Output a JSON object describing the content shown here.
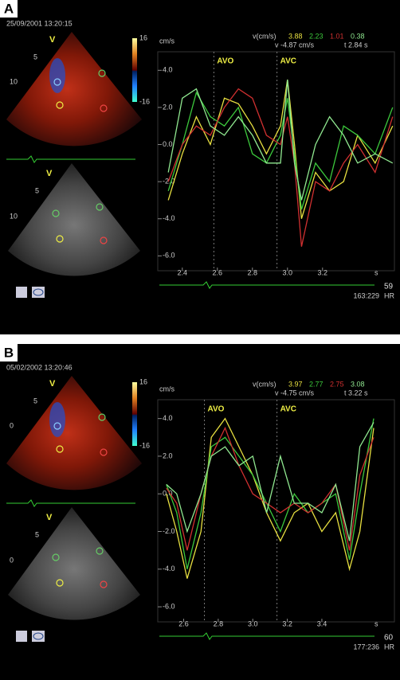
{
  "panels": [
    {
      "label": "A",
      "date": "25/09/2001 13:20:15",
      "colorbar": {
        "max": "16",
        "min": "-16"
      },
      "sector_labels": {
        "view": "V",
        "top": [
          "5",
          "10"
        ],
        "bottom": [
          "5",
          "10"
        ]
      },
      "readout": {
        "title": "v(cm/s)",
        "values": [
          "3.88",
          "2.23",
          "1.01",
          "0.38"
        ],
        "cursor_v": "v -4.87 cm/s",
        "cursor_t": "t 2.84 s"
      },
      "hr": "59",
      "hr_label": "HR",
      "frame": "163:229",
      "chart": {
        "type": "line",
        "unit": "cm/s",
        "x_unit": "s",
        "markers": [
          {
            "label": "AVO",
            "x": 2.58
          },
          {
            "label": "AVC",
            "x": 2.94
          }
        ],
        "x": [
          2.32,
          2.4,
          2.48,
          2.56,
          2.64,
          2.72,
          2.8,
          2.88,
          2.96,
          3.0,
          3.04,
          3.08,
          3.16,
          3.24,
          3.32,
          3.4,
          3.5,
          3.6
        ],
        "xlim": [
          2.26,
          3.61
        ],
        "xticks": [
          2.4,
          2.6,
          2.8,
          {
            "value": 3,
            "label": "3.0"
          },
          3.2
        ],
        "ylim": [
          -6.8,
          5
        ],
        "yticks": [
          {
            "value": 4,
            "label": "4.0"
          },
          {
            "value": 2,
            "label": "2.0"
          },
          {
            "value": 0,
            "label": "0.0"
          },
          {
            "value": -2,
            "label": "-2.0"
          },
          {
            "value": -4,
            "label": "-4.0"
          },
          {
            "value": -6,
            "label": "-6.0"
          }
        ],
        "series": [
          {
            "color": "#e8e040",
            "values": [
              -3,
              -0.5,
              1.5,
              0,
              2.5,
              2.2,
              1,
              -0.5,
              1,
              3.5,
              0,
              -4,
              -1.5,
              -2.5,
              -2,
              0.5,
              -1,
              1
            ]
          },
          {
            "color": "#3cc83c",
            "values": [
              -2.5,
              0,
              2.8,
              1.5,
              1,
              2,
              -0.5,
              -1,
              0.5,
              2.5,
              -0.5,
              -3.5,
              -1,
              -2,
              1,
              0.5,
              -0.5,
              2
            ]
          },
          {
            "color": "#d03030",
            "values": [
              -2,
              0,
              1,
              0.5,
              2,
              3,
              2.5,
              0.5,
              0,
              1.5,
              -1,
              -5.5,
              -2,
              -2.5,
              -1,
              0,
              -1.5,
              1.5
            ]
          },
          {
            "color": "#90e890",
            "values": [
              -1.5,
              2.5,
              3,
              1,
              0.5,
              1.5,
              0.5,
              -1,
              -1,
              3.5,
              -1,
              -3,
              0,
              1.5,
              0.5,
              -1,
              -0.5,
              -1
            ]
          }
        ]
      }
    },
    {
      "label": "B",
      "date": "05/02/2002 13:20:46",
      "colorbar": {
        "max": "16",
        "min": "-16"
      },
      "sector_labels": {
        "view": "V",
        "top": [
          "5",
          "0"
        ],
        "bottom": [
          "5",
          "0"
        ]
      },
      "readout": {
        "title": "v(cm/s)",
        "values": [
          "3.97",
          "2.77",
          "2.75",
          "3.08"
        ],
        "cursor_v": "v -4.75 cm/s",
        "cursor_t": "t 3.22 s"
      },
      "hr": "60",
      "hr_label": "HR",
      "frame": "177:236",
      "chart": {
        "type": "line",
        "unit": "cm/s",
        "x_unit": "s",
        "markers": [
          {
            "label": "AVO",
            "x": 2.72
          },
          {
            "label": "AVC",
            "x": 3.14
          }
        ],
        "x": [
          2.5,
          2.56,
          2.62,
          2.7,
          2.76,
          2.84,
          2.92,
          3.0,
          3.08,
          3.16,
          3.24,
          3.32,
          3.4,
          3.48,
          3.56,
          3.62,
          3.7
        ],
        "xlim": [
          2.45,
          3.82
        ],
        "xticks": [
          2.6,
          2.8,
          {
            "value": 3,
            "label": "3.0"
          },
          3.2,
          3.4
        ],
        "ylim": [
          -6.8,
          5
        ],
        "yticks": [
          {
            "value": 4,
            "label": "4.0"
          },
          {
            "value": 2,
            "label": "2.0"
          },
          {
            "value": 0,
            "label": "0.0"
          },
          {
            "value": -2,
            "label": "-2.0"
          },
          {
            "value": -4,
            "label": "-4.0"
          },
          {
            "value": -6,
            "label": "-6.0"
          }
        ],
        "series": [
          {
            "color": "#e8e040",
            "values": [
              0,
              -2,
              -4.5,
              -2,
              3,
              4,
              2.5,
              1,
              -1,
              -2.5,
              -1,
              -0.5,
              -2,
              -1,
              -4,
              -2,
              3.5
            ]
          },
          {
            "color": "#3cc83c",
            "values": [
              0.5,
              -1,
              -4,
              -1,
              2.5,
              3,
              2,
              1,
              -0.5,
              -2,
              0,
              -1,
              -0.5,
              0,
              -3.5,
              0,
              4
            ]
          },
          {
            "color": "#d03030",
            "values": [
              0.3,
              -0.5,
              -3,
              0,
              2,
              3.5,
              1.5,
              0,
              -0.5,
              -1,
              -0.5,
              -1,
              -0.5,
              0.5,
              -3,
              1,
              3
            ]
          },
          {
            "color": "#90e890",
            "values": [
              0.5,
              0,
              -2,
              0,
              2,
              2.5,
              1.5,
              2,
              -1,
              2,
              -0.5,
              -0.5,
              -1,
              0.5,
              -2.5,
              2.5,
              3.8
            ]
          }
        ]
      }
    }
  ]
}
